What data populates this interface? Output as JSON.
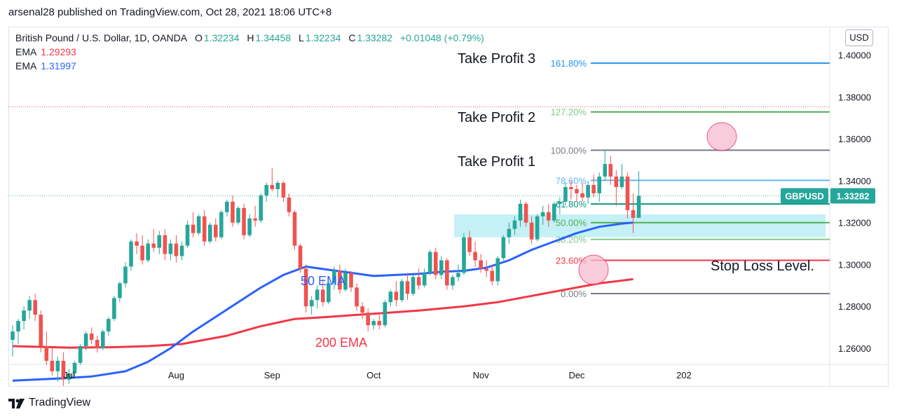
{
  "header": {
    "published_line": "arsenal28 published on TradingView.com, Oct 28, 2021 18:06 UTC+8"
  },
  "legend": {
    "symbol": "British Pound / U.S. Dollar, 1D, OANDA",
    "o_label": "O",
    "o_value": "1.32234",
    "h_label": "H",
    "h_value": "1.34458",
    "l_label": "L",
    "l_value": "1.32234",
    "c_label": "C",
    "c_value": "1.33282",
    "change": "+0.01048 (+0.79%)",
    "ema1_label": "EMA",
    "ema1_value": "1.29293",
    "ema2_label": "EMA",
    "ema2_value": "1.31997"
  },
  "price_scale": {
    "currency": "USD"
  },
  "footer": {
    "brand": "TradingView",
    "logo": "TV logo"
  },
  "colors": {
    "up": "#26a69a",
    "down": "#ef5350",
    "ema50": "#2962ff",
    "ema200": "#f23645",
    "fib_grey": "#787b86",
    "fib_blue": "#2196f3",
    "fib_light_blue": "#64b5f6",
    "fib_green": "#4caf50",
    "fib_teal": "#089981",
    "fib_red": "#f23645",
    "zone": "#b2ebf2",
    "highlight_circle": "#f8bbd0"
  },
  "chart_data": {
    "type": "candlestick",
    "symbol": "GBPUSD",
    "last_price": "1.33282",
    "ylim": [
      1.2523,
      1.4133
    ],
    "y_ticks": [
      "1.40000",
      "1.38000",
      "1.36000",
      "1.34000",
      "1.32000",
      "1.30000",
      "1.28000",
      "1.26000"
    ],
    "x_ticks": [
      {
        "label": "Jul",
        "i": 10
      },
      {
        "label": "Aug",
        "i": 29
      },
      {
        "label": "Sep",
        "i": 46
      },
      {
        "label": "Oct",
        "i": 64
      },
      {
        "label": "Nov",
        "i": 83
      },
      {
        "label": "Dec",
        "i": 100
      },
      {
        "label": "202",
        "i": 119
      }
    ],
    "candles": [
      {
        "o": 1.264,
        "h": 1.271,
        "l": 1.256,
        "c": 1.268
      },
      {
        "o": 1.268,
        "h": 1.274,
        "l": 1.262,
        "c": 1.273
      },
      {
        "o": 1.273,
        "h": 1.28,
        "l": 1.269,
        "c": 1.278
      },
      {
        "o": 1.278,
        "h": 1.285,
        "l": 1.274,
        "c": 1.283
      },
      {
        "o": 1.283,
        "h": 1.286,
        "l": 1.273,
        "c": 1.276
      },
      {
        "o": 1.276,
        "h": 1.278,
        "l": 1.258,
        "c": 1.261
      },
      {
        "o": 1.261,
        "h": 1.268,
        "l": 1.252,
        "c": 1.254
      },
      {
        "o": 1.254,
        "h": 1.26,
        "l": 1.247,
        "c": 1.249
      },
      {
        "o": 1.249,
        "h": 1.256,
        "l": 1.244,
        "c": 1.254
      },
      {
        "o": 1.254,
        "h": 1.258,
        "l": 1.242,
        "c": 1.245
      },
      {
        "o": 1.245,
        "h": 1.25,
        "l": 1.243,
        "c": 1.248
      },
      {
        "o": 1.248,
        "h": 1.254,
        "l": 1.246,
        "c": 1.253
      },
      {
        "o": 1.253,
        "h": 1.262,
        "l": 1.252,
        "c": 1.261
      },
      {
        "o": 1.261,
        "h": 1.268,
        "l": 1.259,
        "c": 1.267
      },
      {
        "o": 1.267,
        "h": 1.27,
        "l": 1.262,
        "c": 1.264
      },
      {
        "o": 1.264,
        "h": 1.266,
        "l": 1.258,
        "c": 1.26
      },
      {
        "o": 1.26,
        "h": 1.269,
        "l": 1.259,
        "c": 1.268
      },
      {
        "o": 1.268,
        "h": 1.275,
        "l": 1.266,
        "c": 1.274
      },
      {
        "o": 1.274,
        "h": 1.285,
        "l": 1.273,
        "c": 1.284
      },
      {
        "o": 1.284,
        "h": 1.292,
        "l": 1.282,
        "c": 1.291
      },
      {
        "o": 1.291,
        "h": 1.301,
        "l": 1.289,
        "c": 1.299
      },
      {
        "o": 1.299,
        "h": 1.312,
        "l": 1.297,
        "c": 1.311
      },
      {
        "o": 1.311,
        "h": 1.315,
        "l": 1.305,
        "c": 1.309
      },
      {
        "o": 1.309,
        "h": 1.314,
        "l": 1.3,
        "c": 1.302
      },
      {
        "o": 1.302,
        "h": 1.312,
        "l": 1.301,
        "c": 1.31
      },
      {
        "o": 1.31,
        "h": 1.317,
        "l": 1.306,
        "c": 1.308
      },
      {
        "o": 1.308,
        "h": 1.316,
        "l": 1.305,
        "c": 1.314
      },
      {
        "o": 1.314,
        "h": 1.317,
        "l": 1.302,
        "c": 1.305
      },
      {
        "o": 1.305,
        "h": 1.312,
        "l": 1.302,
        "c": 1.31
      },
      {
        "o": 1.31,
        "h": 1.314,
        "l": 1.301,
        "c": 1.304
      },
      {
        "o": 1.304,
        "h": 1.311,
        "l": 1.302,
        "c": 1.309
      },
      {
        "o": 1.309,
        "h": 1.321,
        "l": 1.308,
        "c": 1.319
      },
      {
        "o": 1.319,
        "h": 1.325,
        "l": 1.313,
        "c": 1.315
      },
      {
        "o": 1.315,
        "h": 1.324,
        "l": 1.314,
        "c": 1.323
      },
      {
        "o": 1.323,
        "h": 1.326,
        "l": 1.309,
        "c": 1.311
      },
      {
        "o": 1.311,
        "h": 1.32,
        "l": 1.31,
        "c": 1.319
      },
      {
        "o": 1.319,
        "h": 1.322,
        "l": 1.311,
        "c": 1.313
      },
      {
        "o": 1.313,
        "h": 1.326,
        "l": 1.312,
        "c": 1.325
      },
      {
        "o": 1.325,
        "h": 1.331,
        "l": 1.323,
        "c": 1.33
      },
      {
        "o": 1.33,
        "h": 1.333,
        "l": 1.318,
        "c": 1.32
      },
      {
        "o": 1.32,
        "h": 1.328,
        "l": 1.319,
        "c": 1.327
      },
      {
        "o": 1.327,
        "h": 1.329,
        "l": 1.312,
        "c": 1.314
      },
      {
        "o": 1.314,
        "h": 1.324,
        "l": 1.313,
        "c": 1.322
      },
      {
        "o": 1.322,
        "h": 1.328,
        "l": 1.318,
        "c": 1.321
      },
      {
        "o": 1.321,
        "h": 1.334,
        "l": 1.32,
        "c": 1.333
      },
      {
        "o": 1.333,
        "h": 1.339,
        "l": 1.33,
        "c": 1.338
      },
      {
        "o": 1.338,
        "h": 1.346,
        "l": 1.335,
        "c": 1.336
      },
      {
        "o": 1.336,
        "h": 1.34,
        "l": 1.332,
        "c": 1.339
      },
      {
        "o": 1.339,
        "h": 1.34,
        "l": 1.33,
        "c": 1.332
      },
      {
        "o": 1.332,
        "h": 1.334,
        "l": 1.323,
        "c": 1.325
      },
      {
        "o": 1.325,
        "h": 1.326,
        "l": 1.307,
        "c": 1.309
      },
      {
        "o": 1.309,
        "h": 1.31,
        "l": 1.296,
        "c": 1.298
      },
      {
        "o": 1.298,
        "h": 1.3,
        "l": 1.277,
        "c": 1.28
      },
      {
        "o": 1.28,
        "h": 1.285,
        "l": 1.276,
        "c": 1.283
      },
      {
        "o": 1.283,
        "h": 1.29,
        "l": 1.279,
        "c": 1.288
      },
      {
        "o": 1.288,
        "h": 1.293,
        "l": 1.28,
        "c": 1.282
      },
      {
        "o": 1.282,
        "h": 1.292,
        "l": 1.281,
        "c": 1.291
      },
      {
        "o": 1.291,
        "h": 1.299,
        "l": 1.288,
        "c": 1.297
      },
      {
        "o": 1.297,
        "h": 1.3,
        "l": 1.286,
        "c": 1.288
      },
      {
        "o": 1.288,
        "h": 1.298,
        "l": 1.287,
        "c": 1.296
      },
      {
        "o": 1.296,
        "h": 1.297,
        "l": 1.287,
        "c": 1.289
      },
      {
        "o": 1.289,
        "h": 1.291,
        "l": 1.278,
        "c": 1.28
      },
      {
        "o": 1.28,
        "h": 1.282,
        "l": 1.274,
        "c": 1.277
      },
      {
        "o": 1.277,
        "h": 1.279,
        "l": 1.268,
        "c": 1.271
      },
      {
        "o": 1.271,
        "h": 1.274,
        "l": 1.269,
        "c": 1.273
      },
      {
        "o": 1.273,
        "h": 1.276,
        "l": 1.269,
        "c": 1.271
      },
      {
        "o": 1.271,
        "h": 1.283,
        "l": 1.27,
        "c": 1.282
      },
      {
        "o": 1.282,
        "h": 1.288,
        "l": 1.28,
        "c": 1.287
      },
      {
        "o": 1.287,
        "h": 1.292,
        "l": 1.28,
        "c": 1.283
      },
      {
        "o": 1.283,
        "h": 1.293,
        "l": 1.282,
        "c": 1.292
      },
      {
        "o": 1.292,
        "h": 1.296,
        "l": 1.283,
        "c": 1.286
      },
      {
        "o": 1.286,
        "h": 1.295,
        "l": 1.285,
        "c": 1.294
      },
      {
        "o": 1.294,
        "h": 1.298,
        "l": 1.288,
        "c": 1.29
      },
      {
        "o": 1.29,
        "h": 1.298,
        "l": 1.289,
        "c": 1.296
      },
      {
        "o": 1.296,
        "h": 1.307,
        "l": 1.295,
        "c": 1.306
      },
      {
        "o": 1.306,
        "h": 1.308,
        "l": 1.293,
        "c": 1.295
      },
      {
        "o": 1.295,
        "h": 1.304,
        "l": 1.293,
        "c": 1.302
      },
      {
        "o": 1.302,
        "h": 1.303,
        "l": 1.288,
        "c": 1.29
      },
      {
        "o": 1.29,
        "h": 1.295,
        "l": 1.288,
        "c": 1.294
      },
      {
        "o": 1.294,
        "h": 1.3,
        "l": 1.292,
        "c": 1.296
      },
      {
        "o": 1.296,
        "h": 1.315,
        "l": 1.295,
        "c": 1.313
      },
      {
        "o": 1.313,
        "h": 1.316,
        "l": 1.304,
        "c": 1.306
      },
      {
        "o": 1.306,
        "h": 1.311,
        "l": 1.299,
        "c": 1.302
      },
      {
        "o": 1.302,
        "h": 1.305,
        "l": 1.296,
        "c": 1.298
      },
      {
        "o": 1.298,
        "h": 1.302,
        "l": 1.294,
        "c": 1.297
      },
      {
        "o": 1.297,
        "h": 1.3,
        "l": 1.29,
        "c": 1.292
      },
      {
        "o": 1.292,
        "h": 1.304,
        "l": 1.29,
        "c": 1.303
      },
      {
        "o": 1.303,
        "h": 1.314,
        "l": 1.302,
        "c": 1.313
      },
      {
        "o": 1.313,
        "h": 1.32,
        "l": 1.31,
        "c": 1.317
      },
      {
        "o": 1.317,
        "h": 1.323,
        "l": 1.314,
        "c": 1.321
      },
      {
        "o": 1.321,
        "h": 1.331,
        "l": 1.318,
        "c": 1.329
      },
      {
        "o": 1.329,
        "h": 1.33,
        "l": 1.318,
        "c": 1.32
      },
      {
        "o": 1.32,
        "h": 1.323,
        "l": 1.31,
        "c": 1.312
      },
      {
        "o": 1.312,
        "h": 1.324,
        "l": 1.311,
        "c": 1.323
      },
      {
        "o": 1.323,
        "h": 1.328,
        "l": 1.319,
        "c": 1.325
      },
      {
        "o": 1.325,
        "h": 1.329,
        "l": 1.318,
        "c": 1.321
      },
      {
        "o": 1.321,
        "h": 1.33,
        "l": 1.32,
        "c": 1.329
      },
      {
        "o": 1.329,
        "h": 1.332,
        "l": 1.324,
        "c": 1.33
      },
      {
        "o": 1.33,
        "h": 1.339,
        "l": 1.328,
        "c": 1.337
      },
      {
        "o": 1.337,
        "h": 1.34,
        "l": 1.331,
        "c": 1.336
      },
      {
        "o": 1.336,
        "h": 1.338,
        "l": 1.33,
        "c": 1.334
      },
      {
        "o": 1.334,
        "h": 1.339,
        "l": 1.33,
        "c": 1.332
      },
      {
        "o": 1.332,
        "h": 1.34,
        "l": 1.329,
        "c": 1.338
      },
      {
        "o": 1.338,
        "h": 1.343,
        "l": 1.332,
        "c": 1.334
      },
      {
        "o": 1.334,
        "h": 1.344,
        "l": 1.33,
        "c": 1.342
      },
      {
        "o": 1.342,
        "h": 1.355,
        "l": 1.34,
        "c": 1.348
      },
      {
        "o": 1.348,
        "h": 1.352,
        "l": 1.338,
        "c": 1.342
      },
      {
        "o": 1.342,
        "h": 1.345,
        "l": 1.328,
        "c": 1.337
      },
      {
        "o": 1.337,
        "h": 1.348,
        "l": 1.336,
        "c": 1.342
      },
      {
        "o": 1.342,
        "h": 1.344,
        "l": 1.322,
        "c": 1.326
      },
      {
        "o": 1.326,
        "h": 1.334,
        "l": 1.315,
        "c": 1.3223
      },
      {
        "o": 1.3223,
        "h": 1.3446,
        "l": 1.3223,
        "c": 1.3328
      }
    ],
    "ema50": [
      [
        0,
        1.2445
      ],
      [
        8,
        1.2455
      ],
      [
        14,
        1.2465
      ],
      [
        20,
        1.249
      ],
      [
        24,
        1.2535
      ],
      [
        28,
        1.26
      ],
      [
        32,
        1.268
      ],
      [
        36,
        1.275
      ],
      [
        40,
        1.282
      ],
      [
        44,
        1.289
      ],
      [
        48,
        1.295
      ],
      [
        52,
        1.299
      ],
      [
        56,
        1.2975
      ],
      [
        60,
        1.296
      ],
      [
        64,
        1.2945
      ],
      [
        68,
        1.295
      ],
      [
        72,
        1.2955
      ],
      [
        76,
        1.2965
      ],
      [
        80,
        1.297
      ],
      [
        84,
        1.2985
      ],
      [
        88,
        1.302
      ],
      [
        92,
        1.307
      ],
      [
        96,
        1.311
      ],
      [
        100,
        1.315
      ],
      [
        104,
        1.318
      ],
      [
        108,
        1.3195
      ],
      [
        110,
        1.32
      ]
    ],
    "ema200": [
      [
        0,
        1.261
      ],
      [
        10,
        1.2603
      ],
      [
        18,
        1.2605
      ],
      [
        24,
        1.261
      ],
      [
        30,
        1.262
      ],
      [
        38,
        1.266
      ],
      [
        44,
        1.2705
      ],
      [
        50,
        1.274
      ],
      [
        56,
        1.275
      ],
      [
        64,
        1.2765
      ],
      [
        72,
        1.278
      ],
      [
        80,
        1.28
      ],
      [
        86,
        1.282
      ],
      [
        92,
        1.285
      ],
      [
        98,
        1.288
      ],
      [
        104,
        1.291
      ],
      [
        110,
        1.293
      ]
    ],
    "fib_levels": [
      {
        "label": "161.80%",
        "price": 1.3962,
        "color": "#2196f3",
        "label_color": "#2196f3"
      },
      {
        "label": "127.20%",
        "price": 1.3729,
        "color": "#4caf50",
        "label_color": "#81c784"
      },
      {
        "label": "100.00%",
        "price": 1.3546,
        "color": "#787b86",
        "label_color": "#787b86"
      },
      {
        "label": "78.60%",
        "price": 1.3402,
        "color": "#64b5f6",
        "label_color": "#64b5f6"
      },
      {
        "label": "61.80%",
        "price": 1.3289,
        "color": "#089981",
        "label_color": "#089981"
      },
      {
        "label": "50.00%",
        "price": 1.32,
        "color": "#4caf50",
        "label_color": "#4caf50"
      },
      {
        "label": "38.20%",
        "price": 1.312,
        "color": "#81c784",
        "label_color": "#81c784"
      },
      {
        "label": "23.60%",
        "price": 1.302,
        "color": "#f23645",
        "label_color": "#f23645"
      },
      {
        "label": "0.00%",
        "price": 1.2861,
        "color": "#787b86",
        "label_color": "#787b86"
      }
    ],
    "annotations": [
      {
        "text": "Take Profit 3",
        "price": 1.3985
      },
      {
        "text": "Take Profit 2",
        "price": 1.3705
      },
      {
        "text": "Take Profit 1",
        "price": 1.3493
      },
      {
        "text": "Stop Loss Level.",
        "price": 1.2995
      },
      {
        "text": "50 EMA",
        "price": 1.2925
      },
      {
        "text": "200 EMA",
        "price": 1.263
      }
    ],
    "support_zone": [
      1.313,
      1.324
    ],
    "resistance_dotted": 1.3753,
    "last_price_dotted": 1.3328
  }
}
